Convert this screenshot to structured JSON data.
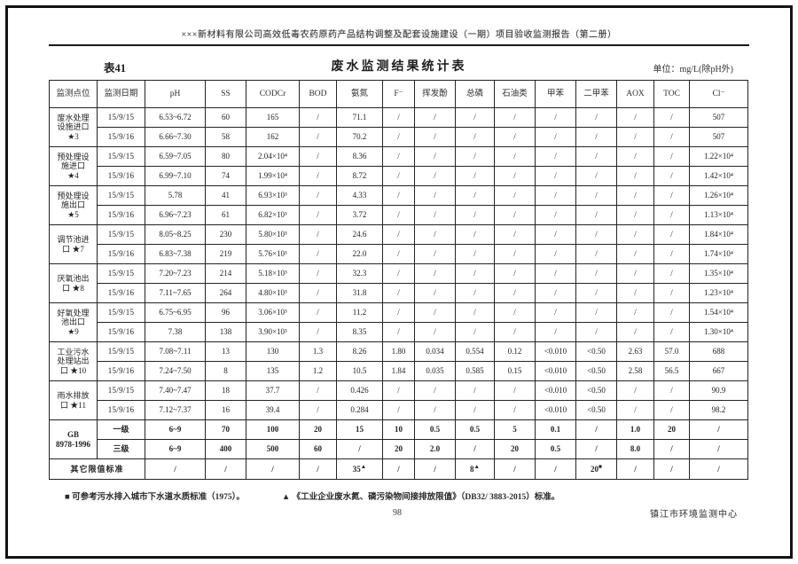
{
  "page": {
    "running_header": "×××新材料有限公司高效低毒农药原药产品结构调整及配套设施建设（一期）项目验收监测报告（第二册）",
    "table_label": "表41",
    "table_title": "废水监测结果统计表",
    "unit_note": "单位：mg/L(除pH外)",
    "page_number": "98",
    "footer_right": "镇江市环境监测中心"
  },
  "footnotes": {
    "square": "■ 可参考污水排入城市下水道水质标准（1975）。",
    "triangle": "▲ 《工业企业废水氮、磷污染物间接排放限值》（DB32/ 3883-2015）标准。"
  },
  "table": {
    "columns": [
      "监测点位",
      "监测日期",
      "pH",
      "SS",
      "CODCr",
      "BOD",
      "氨氮",
      "F⁻",
      "挥发酚",
      "总磷",
      "石油类",
      "甲苯",
      "二甲苯",
      "AOX",
      "TOC",
      "Cl⁻"
    ],
    "groups": [
      {
        "point": "废水处理\n设施进口\n★3",
        "rows": [
          {
            "date": "15/9/15",
            "cells": [
              "6.53~6.72",
              "60",
              "165",
              "/",
              "71.1",
              "/",
              "/",
              "/",
              "/",
              "/",
              "/",
              "/",
              "/",
              "507"
            ]
          },
          {
            "date": "15/9/16",
            "cells": [
              "6.66~7.30",
              "58",
              "162",
              "/",
              "70.2",
              "/",
              "/",
              "/",
              "/",
              "/",
              "/",
              "/",
              "/",
              "507"
            ]
          }
        ]
      },
      {
        "point": "预处理设\n施进口\n★4",
        "rows": [
          {
            "date": "15/9/15",
            "cells": [
              "6.59~7.05",
              "80",
              "2.04×10⁴",
              "/",
              "8.36",
              "/",
              "/",
              "/",
              "/",
              "/",
              "/",
              "/",
              "/",
              "1.22×10⁴"
            ]
          },
          {
            "date": "15/9/16",
            "cells": [
              "6.99~7.10",
              "74",
              "1.99×10⁴",
              "/",
              "8.72",
              "/",
              "/",
              "/",
              "/",
              "/",
              "/",
              "/",
              "/",
              "1.42×10⁴"
            ]
          }
        ]
      },
      {
        "point": "预处理设\n施出口\n★5",
        "rows": [
          {
            "date": "15/9/15",
            "cells": [
              "5.78",
              "41",
              "6.93×10³",
              "/",
              "4.33",
              "/",
              "/",
              "/",
              "/",
              "/",
              "/",
              "/",
              "/",
              "1.26×10⁴"
            ]
          },
          {
            "date": "15/9/16",
            "cells": [
              "6.96~7.23",
              "61",
              "6.82×10³",
              "/",
              "3.72",
              "/",
              "/",
              "/",
              "/",
              "/",
              "/",
              "/",
              "/",
              "1.13×10⁴"
            ]
          }
        ]
      },
      {
        "point": "调节池进\n口 ★7",
        "rows": [
          {
            "date": "15/9/15",
            "cells": [
              "8.05~8.25",
              "230",
              "5.80×10³",
              "/",
              "24.6",
              "/",
              "/",
              "/",
              "/",
              "/",
              "/",
              "/",
              "/",
              "1.84×10⁴"
            ]
          },
          {
            "date": "15/9/16",
            "cells": [
              "6.83~7.38",
              "219",
              "5.76×10³",
              "/",
              "22.0",
              "/",
              "/",
              "/",
              "/",
              "/",
              "/",
              "/",
              "/",
              "1.74×10⁴"
            ]
          }
        ]
      },
      {
        "point": "厌氧池出\n口 ★8",
        "rows": [
          {
            "date": "15/9/15",
            "cells": [
              "7.20~7.23",
              "214",
              "5.18×10³",
              "/",
              "32.3",
              "/",
              "/",
              "/",
              "/",
              "/",
              "/",
              "/",
              "/",
              "1.35×10⁴"
            ]
          },
          {
            "date": "15/9/16",
            "cells": [
              "7.11~7.65",
              "264",
              "4.80×10³",
              "/",
              "31.8",
              "/",
              "/",
              "/",
              "/",
              "/",
              "/",
              "/",
              "/",
              "1.23×10⁴"
            ]
          }
        ]
      },
      {
        "point": "好氧处理\n池出口\n★9",
        "rows": [
          {
            "date": "15/9/15",
            "cells": [
              "6.75~6.95",
              "96",
              "3.06×10³",
              "/",
              "11.2",
              "/",
              "/",
              "/",
              "/",
              "/",
              "/",
              "/",
              "/",
              "1.54×10⁴"
            ]
          },
          {
            "date": "15/9/16",
            "cells": [
              "7.38",
              "138",
              "3.90×10³",
              "/",
              "8.35",
              "/",
              "/",
              "/",
              "/",
              "/",
              "/",
              "/",
              "/",
              "1.30×10⁴"
            ]
          }
        ]
      },
      {
        "point": "工业污水\n处理站出\n口 ★10",
        "rows": [
          {
            "date": "15/9/15",
            "cells": [
              "7.08~7.11",
              "13",
              "130",
              "1.3",
              "8.26",
              "1.80",
              "0.034",
              "0.554",
              "0.12",
              "<0.010",
              "<0.50",
              "2.63",
              "57.0",
              "688"
            ]
          },
          {
            "date": "15/9/16",
            "cells": [
              "7.24~7.50",
              "8",
              "135",
              "1.2",
              "10.5",
              "1.84",
              "0.035",
              "0.585",
              "0.15",
              "<0.010",
              "<0.50",
              "2.58",
              "56.5",
              "667"
            ]
          }
        ]
      },
      {
        "point": "雨水排放\n口 ★11",
        "rows": [
          {
            "date": "15/9/15",
            "cells": [
              "7.40~7.47",
              "18",
              "37.7",
              "/",
              "0.426",
              "/",
              "/",
              "/",
              "/",
              "<0.010",
              "<0.50",
              "/",
              "/",
              "90.9"
            ]
          },
          {
            "date": "15/9/16",
            "cells": [
              "7.12~7.37",
              "16",
              "39.4",
              "/",
              "0.284",
              "/",
              "/",
              "/",
              "/",
              "<0.010",
              "<0.50",
              "/",
              "/",
              "98.2"
            ]
          }
        ]
      }
    ],
    "standards": {
      "label": "GB\n8978-1996",
      "rows": [
        {
          "grade": "一级",
          "cells": [
            "6~9",
            "70",
            "100",
            "20",
            "15",
            "10",
            "0.5",
            "0.5",
            "5",
            "0.1",
            "/",
            "1.0",
            "20",
            "/"
          ]
        },
        {
          "grade": "三级",
          "cells": [
            "6~9",
            "400",
            "500",
            "60",
            "/",
            "20",
            "2.0",
            "/",
            "20",
            "0.5",
            "/",
            "8.0",
            "/",
            "/"
          ]
        }
      ]
    },
    "other_limits": {
      "label": "其它限值标准",
      "cells": [
        "/",
        "/",
        "/",
        "/",
        "35▲",
        "/",
        "/",
        "8▲",
        "/",
        "/",
        "20■",
        "/",
        "/",
        "/"
      ]
    }
  }
}
